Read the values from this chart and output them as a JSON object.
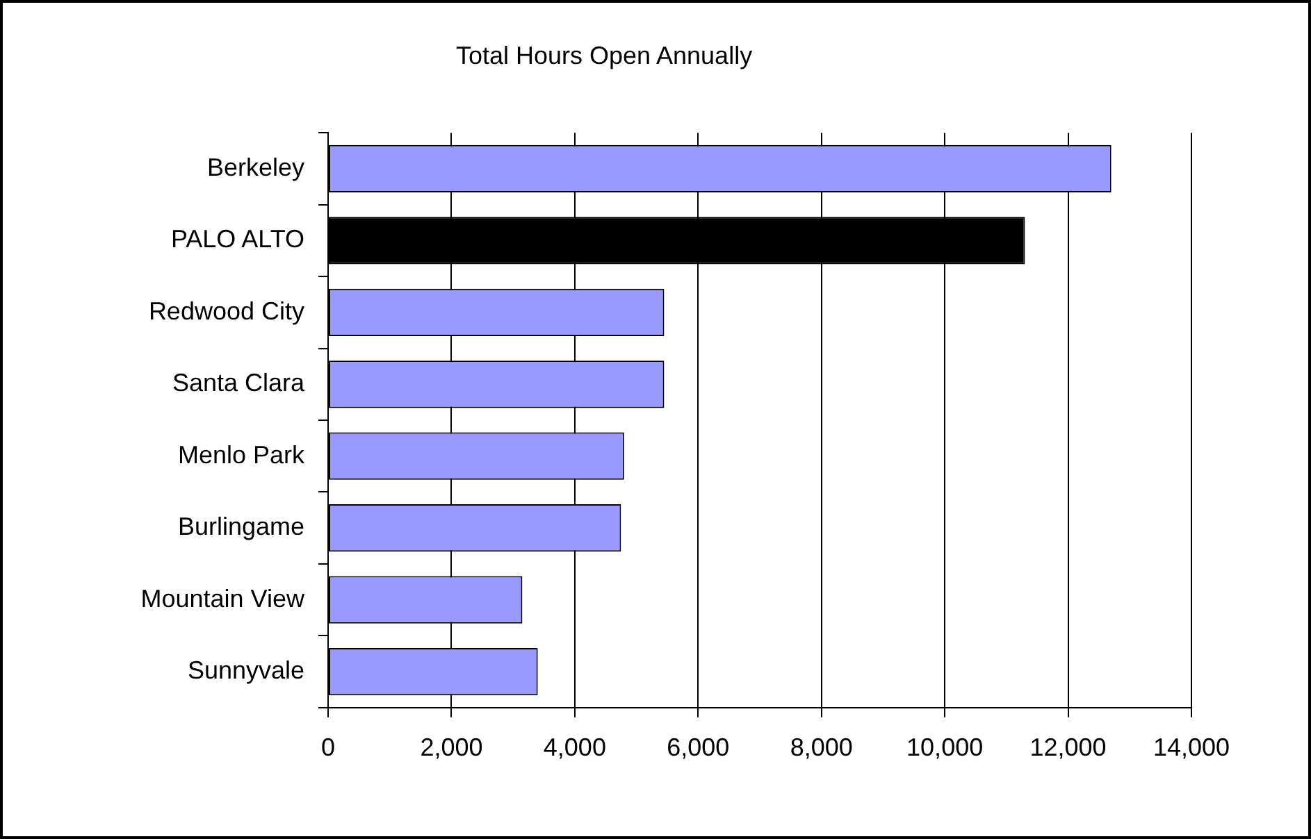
{
  "chart_data": {
    "type": "bar",
    "orientation": "horizontal",
    "title": "Total Hours Open Annually",
    "categories": [
      "Berkeley",
      "PALO ALTO",
      "Redwood City",
      "Santa Clara",
      "Menlo Park",
      "Burlingame",
      "Mountain View",
      "Sunnyvale"
    ],
    "values": [
      12700,
      11300,
      5450,
      5450,
      4800,
      4750,
      3150,
      3400
    ],
    "colors": [
      "#9999ff",
      "#000000",
      "#9999ff",
      "#9999ff",
      "#9999ff",
      "#9999ff",
      "#9999ff",
      "#9999ff"
    ],
    "xlim": [
      0,
      14000
    ],
    "xticks": [
      {
        "value": 0,
        "label": "0"
      },
      {
        "value": 2000,
        "label": "2,000"
      },
      {
        "value": 4000,
        "label": "4,000"
      },
      {
        "value": 6000,
        "label": "6,000"
      },
      {
        "value": 8000,
        "label": "8,000"
      },
      {
        "value": 10000,
        "label": "10,000"
      },
      {
        "value": 12000,
        "label": "12,000"
      },
      {
        "value": 14000,
        "label": "14,000"
      }
    ],
    "grid": "x",
    "legend": false
  }
}
